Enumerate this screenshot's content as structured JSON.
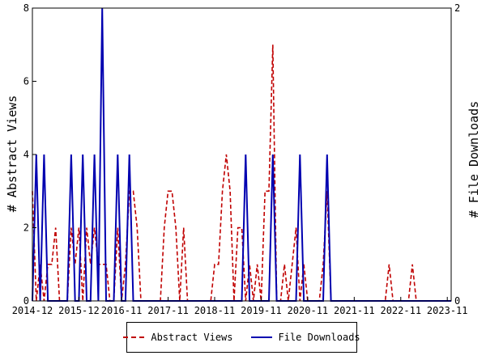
{
  "chart_data": {
    "type": "line",
    "title": "",
    "ylabel": "# Abstract Views",
    "y2label": "# File Downloads",
    "ylim": [
      0,
      8
    ],
    "y2lim": [
      0,
      2
    ],
    "yticks": [
      "0",
      "2",
      "4",
      "6",
      "8"
    ],
    "y2ticks": [
      "0",
      "2"
    ],
    "xlim": [
      "2014-12",
      "2023-12"
    ],
    "xticks": [
      "2014-12",
      "2015-12",
      "2016-11",
      "2017-11",
      "2018-11",
      "2019-11",
      "2020-11",
      "2021-11",
      "2022-11",
      "2023-11"
    ],
    "legend_position": "bottom",
    "colors": {
      "abstract_views": "#c00000",
      "file_downloads": "#0000b0"
    },
    "series": [
      {
        "name": "Abstract Views",
        "axis": "left",
        "style": "dashed",
        "points": [
          [
            "2014-12",
            3
          ],
          [
            "2015-01",
            0
          ],
          [
            "2015-02",
            1
          ],
          [
            "2015-03",
            0
          ],
          [
            "2015-04",
            1
          ],
          [
            "2015-05",
            1
          ],
          [
            "2015-06",
            2
          ],
          [
            "2015-07",
            0
          ],
          [
            "2015-08",
            0
          ],
          [
            "2015-09",
            0
          ],
          [
            "2015-10",
            2
          ],
          [
            "2015-11",
            1
          ],
          [
            "2015-12",
            2
          ],
          [
            "2016-01",
            0
          ],
          [
            "2016-02",
            2
          ],
          [
            "2016-03",
            1
          ],
          [
            "2016-04",
            2
          ],
          [
            "2016-05",
            1
          ],
          [
            "2016-06",
            1
          ],
          [
            "2016-07",
            1
          ],
          [
            "2016-08",
            0
          ],
          [
            "2016-09",
            0
          ],
          [
            "2016-10",
            2
          ],
          [
            "2016-11",
            0
          ],
          [
            "2016-12",
            1
          ],
          [
            "2017-01",
            3
          ],
          [
            "2017-02",
            3
          ],
          [
            "2017-03",
            2
          ],
          [
            "2017-04",
            0
          ],
          [
            "2017-05",
            0
          ],
          [
            "2017-06",
            0
          ],
          [
            "2017-07",
            0
          ],
          [
            "2017-08",
            0
          ],
          [
            "2017-09",
            0
          ],
          [
            "2017-10",
            2
          ],
          [
            "2017-11",
            3
          ],
          [
            "2017-12",
            3
          ],
          [
            "2018-01",
            2
          ],
          [
            "2018-02",
            0
          ],
          [
            "2018-03",
            2
          ],
          [
            "2018-04",
            0
          ],
          [
            "2018-05",
            0
          ],
          [
            "2018-06",
            0
          ],
          [
            "2018-07",
            0
          ],
          [
            "2018-08",
            0
          ],
          [
            "2018-09",
            0
          ],
          [
            "2018-10",
            0
          ],
          [
            "2018-11",
            1
          ],
          [
            "2018-12",
            1
          ],
          [
            "2019-01",
            3
          ],
          [
            "2019-02",
            4
          ],
          [
            "2019-03",
            3
          ],
          [
            "2019-04",
            0
          ],
          [
            "2019-05",
            2
          ],
          [
            "2019-06",
            2
          ],
          [
            "2019-07",
            0
          ],
          [
            "2019-08",
            1
          ],
          [
            "2019-09",
            0
          ],
          [
            "2019-10",
            1
          ],
          [
            "2019-11",
            0
          ],
          [
            "2019-12",
            3
          ],
          [
            "2020-01",
            3
          ],
          [
            "2020-02",
            7
          ],
          [
            "2020-03",
            0
          ],
          [
            "2020-04",
            0
          ],
          [
            "2020-05",
            1
          ],
          [
            "2020-06",
            0
          ],
          [
            "2020-07",
            1
          ],
          [
            "2020-08",
            2
          ],
          [
            "2020-09",
            0
          ],
          [
            "2020-10",
            1
          ],
          [
            "2020-11",
            0
          ],
          [
            "2020-12",
            0
          ],
          [
            "2021-01",
            0
          ],
          [
            "2021-02",
            0
          ],
          [
            "2021-03",
            1
          ],
          [
            "2021-04",
            3
          ],
          [
            "2021-05",
            0
          ],
          [
            "2021-06",
            0
          ],
          [
            "2021-07",
            0
          ],
          [
            "2021-08",
            0
          ],
          [
            "2021-09",
            0
          ],
          [
            "2021-10",
            0
          ],
          [
            "2021-11",
            0
          ],
          [
            "2021-12",
            0
          ],
          [
            "2022-01",
            0
          ],
          [
            "2022-02",
            0
          ],
          [
            "2022-03",
            0
          ],
          [
            "2022-04",
            0
          ],
          [
            "2022-05",
            0
          ],
          [
            "2022-06",
            0
          ],
          [
            "2022-07",
            0
          ],
          [
            "2022-08",
            1
          ],
          [
            "2022-09",
            0
          ],
          [
            "2022-10",
            0
          ],
          [
            "2022-11",
            0
          ],
          [
            "2022-12",
            0
          ],
          [
            "2023-01",
            0
          ],
          [
            "2023-02",
            1
          ],
          [
            "2023-03",
            0
          ],
          [
            "2023-04",
            0
          ],
          [
            "2023-05",
            0
          ],
          [
            "2023-06",
            0
          ],
          [
            "2023-07",
            0
          ],
          [
            "2023-08",
            0
          ],
          [
            "2023-09",
            0
          ],
          [
            "2023-10",
            0
          ],
          [
            "2023-11",
            0
          ],
          [
            "2023-12",
            0
          ]
        ]
      },
      {
        "name": "File Downloads",
        "axis": "right",
        "style": "solid",
        "points": [
          [
            "2014-12",
            0
          ],
          [
            "2015-01",
            1
          ],
          [
            "2015-02",
            0
          ],
          [
            "2015-03",
            1
          ],
          [
            "2015-04",
            0
          ],
          [
            "2015-05",
            0
          ],
          [
            "2015-06",
            0
          ],
          [
            "2015-07",
            0
          ],
          [
            "2015-08",
            0
          ],
          [
            "2015-09",
            0
          ],
          [
            "2015-10",
            1
          ],
          [
            "2015-11",
            0
          ],
          [
            "2015-12",
            0
          ],
          [
            "2016-01",
            1
          ],
          [
            "2016-02",
            0
          ],
          [
            "2016-03",
            0
          ],
          [
            "2016-04",
            1
          ],
          [
            "2016-05",
            0
          ],
          [
            "2016-06",
            2
          ],
          [
            "2016-07",
            0
          ],
          [
            "2016-08",
            0
          ],
          [
            "2016-09",
            0
          ],
          [
            "2016-10",
            1
          ],
          [
            "2016-11",
            0
          ],
          [
            "2016-12",
            0
          ],
          [
            "2017-01",
            1
          ],
          [
            "2017-02",
            0
          ],
          [
            "2017-03",
            0
          ],
          [
            "2017-04",
            0
          ],
          [
            "2017-05",
            0
          ],
          [
            "2017-06",
            0
          ],
          [
            "2017-07",
            0
          ],
          [
            "2017-08",
            0
          ],
          [
            "2017-09",
            0
          ],
          [
            "2017-10",
            0
          ],
          [
            "2017-11",
            0
          ],
          [
            "2017-12",
            0
          ],
          [
            "2018-01",
            0
          ],
          [
            "2018-02",
            0
          ],
          [
            "2018-03",
            0
          ],
          [
            "2018-04",
            0
          ],
          [
            "2018-05",
            0
          ],
          [
            "2018-06",
            0
          ],
          [
            "2018-07",
            0
          ],
          [
            "2018-08",
            0
          ],
          [
            "2018-09",
            0
          ],
          [
            "2018-10",
            0
          ],
          [
            "2018-11",
            0
          ],
          [
            "2018-12",
            0
          ],
          [
            "2019-01",
            0
          ],
          [
            "2019-02",
            0
          ],
          [
            "2019-03",
            0
          ],
          [
            "2019-04",
            0
          ],
          [
            "2019-05",
            0
          ],
          [
            "2019-06",
            0
          ],
          [
            "2019-07",
            1
          ],
          [
            "2019-08",
            0
          ],
          [
            "2019-09",
            0
          ],
          [
            "2019-10",
            0
          ],
          [
            "2019-11",
            0
          ],
          [
            "2019-12",
            0
          ],
          [
            "2020-01",
            0
          ],
          [
            "2020-02",
            1
          ],
          [
            "2020-03",
            0
          ],
          [
            "2020-04",
            0
          ],
          [
            "2020-05",
            0
          ],
          [
            "2020-06",
            0
          ],
          [
            "2020-07",
            0
          ],
          [
            "2020-08",
            0
          ],
          [
            "2020-09",
            1
          ],
          [
            "2020-10",
            0
          ],
          [
            "2020-11",
            0
          ],
          [
            "2020-12",
            0
          ],
          [
            "2021-01",
            0
          ],
          [
            "2021-02",
            0
          ],
          [
            "2021-03",
            0
          ],
          [
            "2021-04",
            1
          ],
          [
            "2021-05",
            0
          ],
          [
            "2021-06",
            0
          ],
          [
            "2021-07",
            0
          ],
          [
            "2021-08",
            0
          ],
          [
            "2021-09",
            0
          ],
          [
            "2021-10",
            0
          ],
          [
            "2021-11",
            0
          ],
          [
            "2021-12",
            0
          ],
          [
            "2022-01",
            0
          ],
          [
            "2022-02",
            0
          ],
          [
            "2022-03",
            0
          ],
          [
            "2022-04",
            0
          ],
          [
            "2022-05",
            0
          ],
          [
            "2022-06",
            0
          ],
          [
            "2022-07",
            0
          ],
          [
            "2022-08",
            0
          ],
          [
            "2022-09",
            0
          ],
          [
            "2022-10",
            0
          ],
          [
            "2022-11",
            0
          ],
          [
            "2022-12",
            0
          ],
          [
            "2023-01",
            0
          ],
          [
            "2023-02",
            0
          ],
          [
            "2023-03",
            0
          ],
          [
            "2023-04",
            0
          ],
          [
            "2023-05",
            0
          ],
          [
            "2023-06",
            0
          ],
          [
            "2023-07",
            0
          ],
          [
            "2023-08",
            0
          ],
          [
            "2023-09",
            0
          ],
          [
            "2023-10",
            0
          ],
          [
            "2023-11",
            0
          ],
          [
            "2023-12",
            0
          ]
        ]
      }
    ]
  }
}
